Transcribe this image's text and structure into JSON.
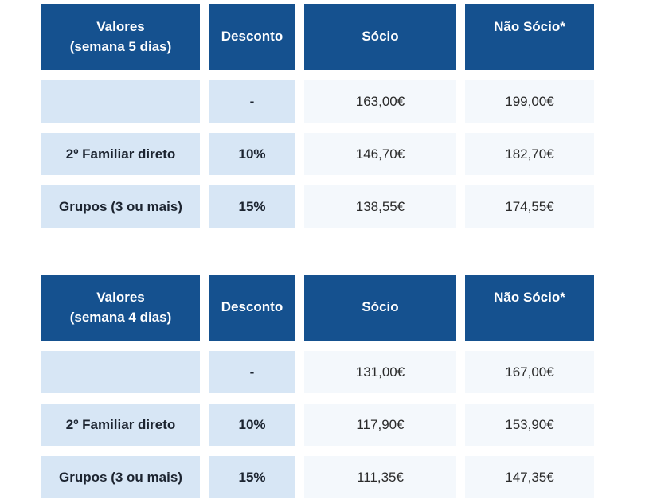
{
  "colors": {
    "header_bg": "#15518f",
    "header_text": "#ffffff",
    "cell_blue": "#d7e6f5",
    "cell_light": "#f4f8fc",
    "label_text": "#1c2430",
    "value_text": "#2b2b2b"
  },
  "tables": [
    {
      "headers": {
        "col1_line1": "Valores",
        "col1_line2": "(semana 5 dias)",
        "col2": "Desconto",
        "col3": "Sócio",
        "col4": "Não Sócio*"
      },
      "rows": [
        {
          "label": "",
          "desconto": "-",
          "socio": "163,00€",
          "nao_socio": "199,00€"
        },
        {
          "label": "2º Familiar direto",
          "desconto": "10%",
          "socio": "146,70€",
          "nao_socio": "182,70€"
        },
        {
          "label": "Grupos (3 ou mais)",
          "desconto": "15%",
          "socio": "138,55€",
          "nao_socio": "174,55€"
        }
      ]
    },
    {
      "headers": {
        "col1_line1": "Valores",
        "col1_line2": "(semana 4 dias)",
        "col2": "Desconto",
        "col3": "Sócio",
        "col4": "Não Sócio*"
      },
      "rows": [
        {
          "label": "",
          "desconto": "-",
          "socio": "131,00€",
          "nao_socio": "167,00€"
        },
        {
          "label": "2º Familiar direto",
          "desconto": "10%",
          "socio": "117,90€",
          "nao_socio": "153,90€"
        },
        {
          "label": "Grupos (3 ou mais)",
          "desconto": "15%",
          "socio": "111,35€",
          "nao_socio": "147,35€"
        }
      ]
    }
  ]
}
